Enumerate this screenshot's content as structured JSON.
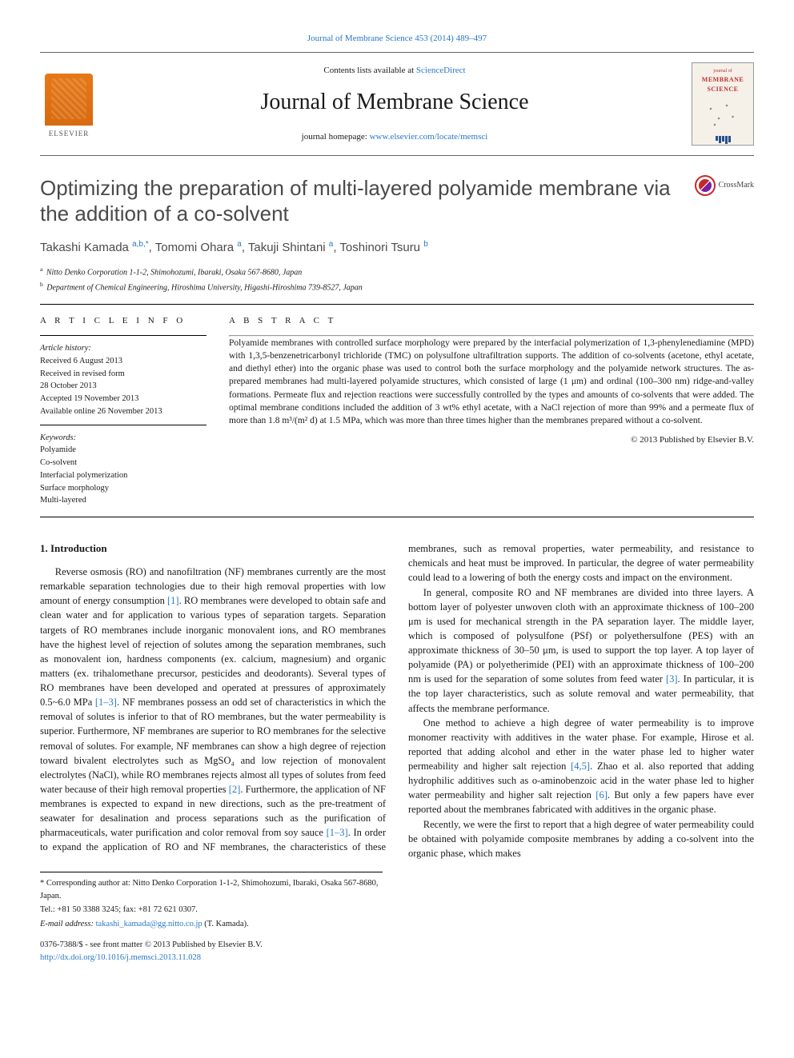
{
  "top_citation": "Journal of Membrane Science 453 (2014) 489–497",
  "masthead": {
    "contents_prefix": "Contents lists available at ",
    "contents_link": "ScienceDirect",
    "journal_name": "Journal of Membrane Science",
    "homepage_prefix": "journal homepage: ",
    "homepage_link": "www.elsevier.com/locate/memsci",
    "publisher_logo_text": "ELSEVIER",
    "cover_title1": "journal of",
    "cover_title2": "MEMBRANE",
    "cover_title3": "SCIENCE"
  },
  "crossmark_label": "CrossMark",
  "article": {
    "title": "Optimizing the preparation of multi-layered polyamide membrane via the addition of a co-solvent",
    "authors_html": "Takashi Kamada <sup>a,b,*</sup>, Tomomi Ohara <sup>a</sup>, Takuji Shintani <sup>a</sup>, Toshinori Tsuru <sup>b</sup>",
    "affiliations": [
      {
        "sup": "a",
        "text": "Nitto Denko Corporation 1-1-2, Shimohozumi, Ibaraki, Osaka 567-8680, Japan"
      },
      {
        "sup": "b",
        "text": "Department of Chemical Engineering, Hiroshima University, Higashi-Hiroshima 739-8527, Japan"
      }
    ]
  },
  "info": {
    "header": "A R T I C L E  I N F O",
    "history_label": "Article history:",
    "history": [
      "Received 6 August 2013",
      "Received in revised form",
      "28 October 2013",
      "Accepted 19 November 2013",
      "Available online 26 November 2013"
    ],
    "keywords_label": "Keywords:",
    "keywords": [
      "Polyamide",
      "Co-solvent",
      "Interfacial polymerization",
      "Surface morphology",
      "Multi-layered"
    ]
  },
  "abstract": {
    "header": "A B S T R A C T",
    "text": "Polyamide membranes with controlled surface morphology were prepared by the interfacial polymerization of 1,3-phenylenediamine (MPD) with 1,3,5-benzenetricarbonyl trichloride (TMC) on polysulfone ultrafiltration supports. The addition of co-solvents (acetone, ethyl acetate, and diethyl ether) into the organic phase was used to control both the surface morphology and the polyamide network structures. The as-prepared membranes had multi-layered polyamide structures, which consisted of large (1 μm) and ordinal (100–300 nm) ridge-and-valley formations. Permeate flux and rejection reactions were successfully controlled by the types and amounts of co-solvents that were added. The optimal membrane conditions included the addition of 3 wt% ethyl acetate, with a NaCl rejection of more than 99% and a permeate flux of more than 1.8 m³/(m² d) at 1.5 MPa, which was more than three times higher than the membranes prepared without a co-solvent.",
    "copyright": "© 2013 Published by Elsevier B.V."
  },
  "body": {
    "section_number": "1.",
    "section_title": "Introduction",
    "p1a": "Reverse osmosis (RO) and nanofiltration (NF) membranes currently are the most remarkable separation technologies due to their high removal properties with low amount of energy consumption ",
    "p1_ref1": "[1]",
    "p1b": ". RO membranes were developed to obtain safe and clean water and for application to various types of separation targets. Separation targets of RO membranes include inorganic monovalent ions, and RO membranes have the highest level of rejection of solutes among the separation membranes, such as monovalent ion, hardness components (ex. calcium, magnesium) and organic matters (ex. trihalomethane precursor, pesticides and deodorants). Several types of RO membranes have been developed and operated at pressures of approximately 0.5~6.0 MPa ",
    "p1_ref2": "[1–3]",
    "p1c": ". NF membranes possess an odd set of characteristics in which the removal of solutes is inferior to that of RO membranes, but the water permeability is superior. Furthermore, NF membranes are superior to RO membranes for the selective removal of solutes. For example, NF membranes can show a high degree of rejection toward bivalent electrolytes such as MgSO₄ and low rejection of monovalent electrolytes (NaCl), while RO membranes rejects almost all types of solutes from feed water because of their high removal properties ",
    "p1_ref3": "[2]",
    "p1d": ". Furthermore, the application of NF membranes is expected to expand in new directions, such as the pre-treatment of seawater for desalination and process separations such as the purification of pharmaceuticals, water purification and color removal from ",
    "p2a": "soy sauce ",
    "p2_ref1": "[1–3]",
    "p2b": ". In order to expand the application of RO and NF membranes, the characteristics of these membranes, such as removal properties, water permeability, and resistance to chemicals and heat must be improved. In particular, the degree of water permeability could lead to a lowering of both the energy costs and impact on the environment.",
    "p3a": "In general, composite RO and NF membranes are divided into three layers. A bottom layer of polyester unwoven cloth with an approximate thickness of 100–200 μm is used for mechanical strength in the PA separation layer. The middle layer, which is composed of polysulfone (PSf) or polyethersulfone (PES) with an approximate thickness of 30–50 μm, is used to support the top layer. A top layer of polyamide (PA) or polyetherimide (PEI) with an approximate thickness of 100–200 nm is used for the separation of some solutes from feed water ",
    "p3_ref1": "[3]",
    "p3b": ". In particular, it is the top layer characteristics, such as solute removal and water permeability, that affects the membrane performance.",
    "p4a": "One method to achieve a high degree of water permeability is to improve monomer reactivity with additives in the water phase. For example, Hirose et al. reported that adding alcohol and ether in the water phase led to higher water permeability and higher salt rejection ",
    "p4_ref1": "[4,5]",
    "p4b": ". Zhao et al. also reported that adding hydrophilic additives such as o-aminobenzoic acid in the water phase led to higher water permeability and higher salt rejection ",
    "p4_ref2": "[6]",
    "p4c": ". But only a few papers have ever reported about the membranes fabricated with additives in the organic phase.",
    "p5": "Recently, we were the first to report that a high degree of water permeability could be obtained with polyamide composite membranes by adding a co-solvent into the organic phase, which makes"
  },
  "footnotes": {
    "corr": "* Corresponding author at: Nitto Denko Corporation 1-1-2, Shimohozumi, Ibaraki, Osaka 567-8680, Japan.",
    "tel": "Tel.: +81 50 3388 3245; fax: +81 72 621 0307.",
    "email_label": "E-mail address: ",
    "email": "takashi_kamada@gg.nitto.co.jp",
    "email_who": " (T. Kamada)."
  },
  "pub": {
    "line1": "0376-7388/$ - see front matter © 2013 Published by Elsevier B.V.",
    "doi": "http://dx.doi.org/10.1016/j.memsci.2013.11.028"
  },
  "colors": {
    "link": "#2878c7",
    "elsevier_orange": "#e67817",
    "text": "#1a1a1a",
    "title_gray": "#4a4a4a"
  }
}
